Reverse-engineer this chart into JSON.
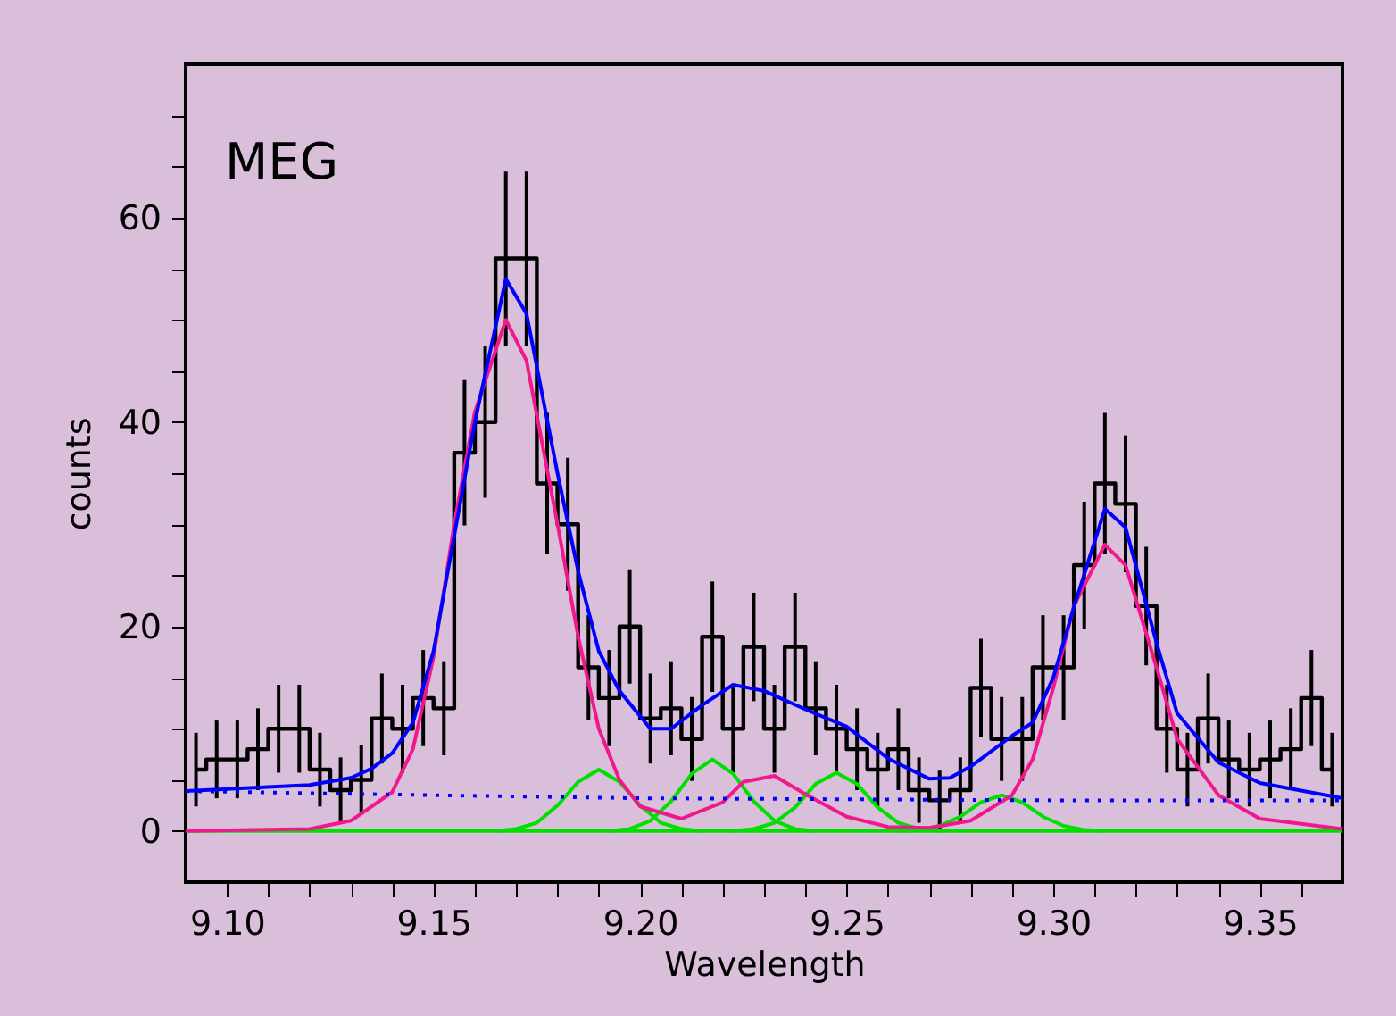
{
  "chart_data": {
    "type": "step",
    "xlabel": "Wavelength",
    "ylabel": "counts",
    "annotations": [
      "MEG"
    ],
    "xlim": [
      9.09,
      9.37
    ],
    "ylim": [
      -5,
      75
    ],
    "xticks": [
      {
        "value": 9.1,
        "label": "9.10"
      },
      {
        "value": 9.11,
        "label": null
      },
      {
        "value": 9.12,
        "label": null
      },
      {
        "value": 9.13,
        "label": null
      },
      {
        "value": 9.14,
        "label": null
      },
      {
        "value": 9.15,
        "label": "9.15"
      },
      {
        "value": 9.16,
        "label": null
      },
      {
        "value": 9.17,
        "label": null
      },
      {
        "value": 9.18,
        "label": null
      },
      {
        "value": 9.19,
        "label": null
      },
      {
        "value": 9.2,
        "label": "9.20"
      },
      {
        "value": 9.21,
        "label": null
      },
      {
        "value": 9.22,
        "label": null
      },
      {
        "value": 9.23,
        "label": null
      },
      {
        "value": 9.24,
        "label": null
      },
      {
        "value": 9.25,
        "label": "9.25"
      },
      {
        "value": 9.26,
        "label": null
      },
      {
        "value": 9.27,
        "label": null
      },
      {
        "value": 9.28,
        "label": null
      },
      {
        "value": 9.29,
        "label": null
      },
      {
        "value": 9.3,
        "label": "9.30"
      },
      {
        "value": 9.31,
        "label": null
      },
      {
        "value": 9.32,
        "label": null
      },
      {
        "value": 9.33,
        "label": null
      },
      {
        "value": 9.34,
        "label": null
      },
      {
        "value": 9.35,
        "label": "9.35"
      },
      {
        "value": 9.36,
        "label": null
      }
    ],
    "yticks": [
      0,
      {
        "value": 5,
        "label": null
      },
      {
        "value": 10,
        "label": null
      },
      {
        "value": 15,
        "label": null
      },
      20,
      {
        "value": 25,
        "label": null
      },
      {
        "value": 30,
        "label": null
      },
      {
        "value": 35,
        "label": null
      },
      40,
      {
        "value": 45,
        "label": null
      },
      {
        "value": 50,
        "label": null
      },
      {
        "value": 55,
        "label": null
      },
      60,
      {
        "value": 65,
        "label": null
      },
      {
        "value": 70,
        "label": null
      }
    ],
    "grid": false,
    "marker": "none",
    "series": [
      {
        "color": "#000000",
        "x": [
          9.0925,
          9.0975,
          9.1025,
          9.1075,
          9.1125,
          9.1175,
          9.1225,
          9.1275,
          9.1325,
          9.1375,
          9.1425,
          9.1475,
          9.1525,
          9.1575,
          9.1625,
          9.1675,
          9.1725,
          9.1775,
          9.1825,
          9.1875,
          9.1925,
          9.1975,
          9.2025,
          9.2075,
          9.2125,
          9.2175,
          9.2225,
          9.2275,
          9.2325,
          9.2375,
          9.2425,
          9.2475,
          9.2525,
          9.2575,
          9.2625,
          9.2675,
          9.2725,
          9.2775,
          9.2825,
          9.2875,
          9.2925,
          9.2975,
          9.3025,
          9.3075,
          9.3125,
          9.3175,
          9.3225,
          9.3275,
          9.3325,
          9.3375,
          9.3425,
          9.3475,
          9.3525,
          9.3575,
          9.3625,
          9.3675
        ],
        "values": [
          6,
          7,
          7,
          8,
          10,
          10,
          6,
          4,
          5,
          11,
          10,
          13,
          12,
          37,
          40,
          56,
          56,
          34,
          30,
          16,
          13,
          20,
          11,
          12,
          9,
          19,
          10,
          18,
          10,
          18,
          12,
          10,
          8,
          6,
          8,
          4,
          3,
          4,
          14,
          9,
          9,
          16,
          16,
          26,
          34,
          32,
          22,
          10,
          6,
          11,
          7,
          6,
          7,
          8,
          13,
          6
        ],
        "errors": [
          3.6,
          3.8,
          3.8,
          4.0,
          4.3,
          4.3,
          3.6,
          3.2,
          3.4,
          4.4,
          4.3,
          4.7,
          4.6,
          7.1,
          7.4,
          8.5,
          8.5,
          6.9,
          6.5,
          5.1,
          4.7,
          5.6,
          4.4,
          4.6,
          4.1,
          5.4,
          4.3,
          5.3,
          4.3,
          5.3,
          4.6,
          4.3,
          4.0,
          3.6,
          4.0,
          3.2,
          2.9,
          3.2,
          4.8,
          4.1,
          4.1,
          5.1,
          5.1,
          6.2,
          6.9,
          6.7,
          5.8,
          4.3,
          3.6,
          4.4,
          3.8,
          3.6,
          3.8,
          4.0,
          4.7,
          3.6
        ]
      },
      {
        "type": "line",
        "color": "#00e000",
        "x": [
          9.09,
          9.37
        ],
        "values": [
          0,
          0
        ]
      },
      {
        "type": "line",
        "color": "#00e000",
        "x": [
          9.165,
          9.17,
          9.175,
          9.18,
          9.185,
          9.19,
          9.195,
          9.2,
          9.205,
          9.21,
          9.215
        ],
        "values": [
          0,
          0.2,
          0.8,
          2.5,
          4.8,
          6,
          4.8,
          2.5,
          0.8,
          0.2,
          0
        ]
      },
      {
        "type": "line",
        "color": "#00e000",
        "x": [
          9.1925,
          9.1975,
          9.2025,
          9.2075,
          9.2125,
          9.2175,
          9.2225,
          9.2275,
          9.2325,
          9.2375,
          9.2425
        ],
        "values": [
          0,
          0.2,
          1,
          2.9,
          5.6,
          7,
          5.6,
          2.9,
          1,
          0.2,
          0
        ]
      },
      {
        "type": "line",
        "color": "#00e000",
        "x": [
          9.2225,
          9.2275,
          9.2325,
          9.2375,
          9.2425,
          9.2475,
          9.2525,
          9.2575,
          9.2625,
          9.2675,
          9.2725
        ],
        "values": [
          0,
          0.2,
          0.8,
          2.3,
          4.6,
          5.7,
          4.6,
          2.3,
          0.8,
          0.2,
          0
        ]
      },
      {
        "type": "line",
        "color": "#00e000",
        "x": [
          9.2625,
          9.2675,
          9.2725,
          9.2775,
          9.2825,
          9.2875,
          9.2925,
          9.2975,
          9.3025,
          9.3075,
          9.3125
        ],
        "values": [
          0,
          0.1,
          0.5,
          1.4,
          2.8,
          3.5,
          2.8,
          1.4,
          0.5,
          0.1,
          0
        ]
      },
      {
        "type": "line",
        "color": "#f0188c",
        "x": [
          9.09,
          9.12,
          9.13,
          9.14,
          9.145,
          9.15,
          9.155,
          9.16,
          9.1675,
          9.1725,
          9.18,
          9.185,
          9.19,
          9.195,
          9.2,
          9.21,
          9.22,
          9.225,
          9.2325,
          9.24,
          9.25,
          9.26,
          9.27,
          9.28,
          9.29,
          9.295,
          9.3,
          9.305,
          9.3125,
          9.3175,
          9.325,
          9.33,
          9.34,
          9.35,
          9.37
        ],
        "values": [
          0,
          0.2,
          1,
          3.8,
          8,
          17,
          30,
          41,
          50,
          46,
          30,
          19,
          10,
          5,
          2.4,
          1.2,
          2.8,
          4.8,
          5.4,
          3.6,
          1.4,
          0.4,
          0.3,
          1,
          3.5,
          7,
          14,
          22,
          28,
          26,
          16,
          9,
          3.5,
          1.2,
          0.2
        ]
      },
      {
        "type": "line",
        "color": "#0000ff",
        "line_style": "dotted",
        "x": [
          9.09,
          9.15,
          9.2,
          9.3,
          9.37
        ],
        "values": [
          3.9,
          3.5,
          3.2,
          3.0,
          3.0
        ]
      },
      {
        "type": "line",
        "color": "#0000ff",
        "x": [
          9.09,
          9.12,
          9.13,
          9.135,
          9.14,
          9.145,
          9.15,
          9.155,
          9.16,
          9.1675,
          9.1725,
          9.18,
          9.185,
          9.19,
          9.195,
          9.2025,
          9.2075,
          9.215,
          9.2225,
          9.23,
          9.24,
          9.25,
          9.26,
          9.27,
          9.275,
          9.28,
          9.29,
          9.295,
          9.3,
          9.305,
          9.3125,
          9.3175,
          9.325,
          9.33,
          9.34,
          9.35,
          9.37
        ],
        "values": [
          3.9,
          4.5,
          5.2,
          6.1,
          7.6,
          10.6,
          17.6,
          28.9,
          40,
          54,
          50.6,
          35,
          25.4,
          17.6,
          13.7,
          10,
          10,
          12.3,
          14.3,
          13.7,
          11.9,
          10.2,
          7.1,
          5.1,
          5.2,
          6.3,
          9.3,
          10.6,
          15,
          21.9,
          31.5,
          29.7,
          18.4,
          11.5,
          6.7,
          4.7,
          3.2
        ]
      }
    ]
  }
}
